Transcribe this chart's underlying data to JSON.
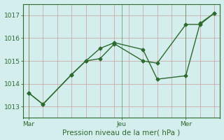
{
  "line1_x": [
    0,
    0.5,
    1.5,
    2.0,
    2.5,
    3.0,
    4.0,
    4.5,
    5.5,
    6.0,
    6.5
  ],
  "line1_y": [
    1013.6,
    1013.1,
    1014.4,
    1015.0,
    1015.1,
    1015.75,
    1015.0,
    1014.9,
    1016.6,
    1016.6,
    1017.1
  ],
  "line2_x": [
    0,
    0.5,
    1.5,
    2.0,
    2.5,
    3.0,
    4.0,
    4.5,
    5.5,
    6.0,
    6.5
  ],
  "line2_y": [
    1013.6,
    1013.1,
    1014.4,
    1015.0,
    1015.55,
    1015.8,
    1015.5,
    1014.2,
    1014.35,
    1016.65,
    1017.1
  ],
  "xtick_positions": [
    0,
    3.25,
    5.5
  ],
  "xtick_labels": [
    "Mar",
    "Jeu",
    "Mer"
  ],
  "ytick_positions": [
    1013,
    1014,
    1015,
    1016,
    1017
  ],
  "ytick_labels": [
    "1013",
    "1014",
    "1015",
    "1016",
    "1017"
  ],
  "xlabel": "Pression niveau de la mer( hPa )",
  "ylim": [
    1012.5,
    1017.5
  ],
  "xlim": [
    -0.2,
    6.7
  ],
  "line_color": "#2d6a2d",
  "marker": "D",
  "marker_size": 2.5,
  "bg_color": "#d4eeee",
  "grid_color_v": "#c8a0a0",
  "grid_color_h": "#c8a0a0",
  "vline_x": [
    0,
    3.25,
    5.5
  ],
  "tick_label_color": "#2d6a2d",
  "xlabel_color": "#2d6a2d",
  "xlabel_fontsize": 7.5,
  "tick_fontsize": 6.5
}
